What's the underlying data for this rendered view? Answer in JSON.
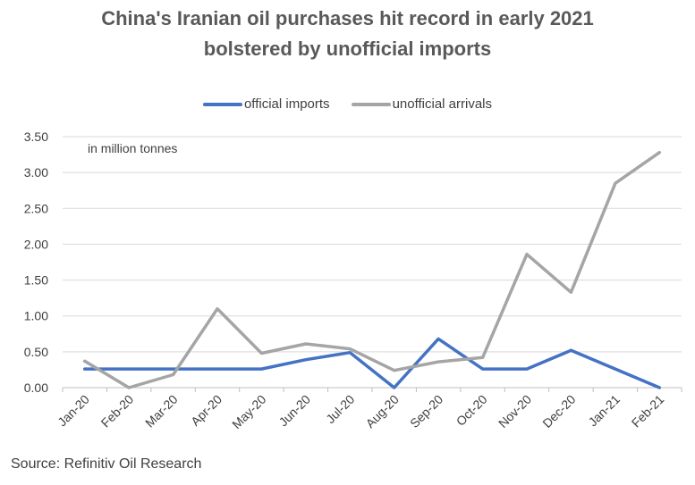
{
  "chart_data": {
    "type": "line",
    "title_lines": [
      "China's Iranian oil purchases hit record in early 2021",
      "bolstered by unofficial imports"
    ],
    "annotation": "in million tonnes",
    "source": "Source: Refinitiv Oil Research",
    "categories": [
      "Jan-20",
      "Feb-20",
      "Mar-20",
      "Apr-20",
      "May-20",
      "Jun-20",
      "Jul-20",
      "Aug-20",
      "Sep-20",
      "Oct-20",
      "Nov-20",
      "Dec-20",
      "Jan-21",
      "Feb-21"
    ],
    "series": [
      {
        "name": "official imports",
        "color": "#4472C4",
        "values": [
          0.26,
          0.26,
          0.26,
          0.26,
          0.26,
          0.39,
          0.49,
          0.0,
          0.68,
          0.26,
          0.26,
          0.52,
          0.26,
          0.0
        ]
      },
      {
        "name": "unofficial arrivals",
        "color": "#A5A5A5",
        "values": [
          0.37,
          0.0,
          0.18,
          1.1,
          0.48,
          0.61,
          0.54,
          0.24,
          0.36,
          0.42,
          1.86,
          1.33,
          2.85,
          3.28
        ]
      }
    ],
    "ylim": [
      0,
      3.5
    ],
    "yticks": [
      "0.00",
      "0.50",
      "1.00",
      "1.50",
      "2.00",
      "2.50",
      "3.00",
      "3.50"
    ],
    "grid": true,
    "legend_position": "top-center"
  }
}
